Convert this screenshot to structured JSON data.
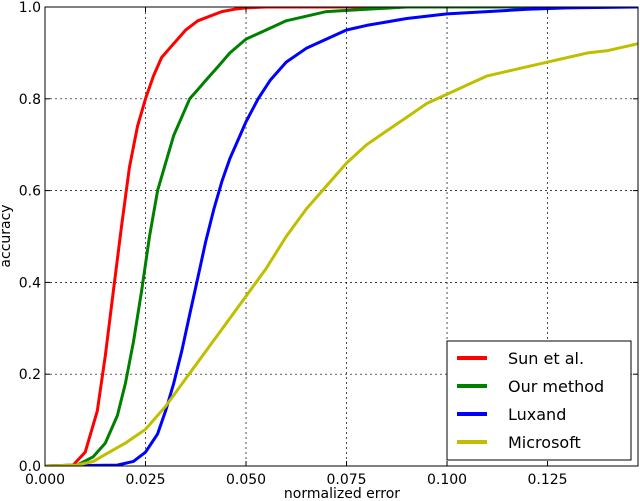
{
  "chart_data": {
    "type": "line",
    "title": "",
    "xlabel": "normalized error",
    "ylabel": "accuracy",
    "xlim": [
      0.0,
      0.1475
    ],
    "ylim": [
      0.0,
      1.0
    ],
    "x_ticks": [
      0.0,
      0.025,
      0.05,
      0.075,
      0.1,
      0.125
    ],
    "x_tick_labels": [
      "0.000",
      "0.025",
      "0.050",
      "0.075",
      "0.100",
      "0.125"
    ],
    "y_ticks": [
      0.0,
      0.2,
      0.4,
      0.6,
      0.8,
      1.0
    ],
    "y_tick_labels": [
      "0.0",
      "0.2",
      "0.4",
      "0.6",
      "0.8",
      "1.0"
    ],
    "grid": true,
    "legend_position": "bottom-right",
    "series": [
      {
        "name": "Sun et al.",
        "color": "#ff0000",
        "x": [
          0.0,
          0.007,
          0.01,
          0.013,
          0.015,
          0.017,
          0.019,
          0.021,
          0.023,
          0.025,
          0.027,
          0.029,
          0.031,
          0.033,
          0.035,
          0.038,
          0.041,
          0.044,
          0.047,
          0.05,
          0.055,
          0.06,
          0.07,
          0.08,
          0.1,
          0.1475
        ],
        "y": [
          0.0,
          0.002,
          0.03,
          0.12,
          0.24,
          0.38,
          0.52,
          0.65,
          0.74,
          0.8,
          0.85,
          0.89,
          0.91,
          0.93,
          0.95,
          0.97,
          0.98,
          0.99,
          0.995,
          0.998,
          1.0,
          1.0,
          1.0,
          1.0,
          1.0,
          1.0
        ]
      },
      {
        "name": "Our method",
        "color": "#008000",
        "x": [
          0.0,
          0.008,
          0.012,
          0.015,
          0.018,
          0.02,
          0.022,
          0.024,
          0.026,
          0.028,
          0.03,
          0.032,
          0.034,
          0.036,
          0.038,
          0.04,
          0.043,
          0.046,
          0.05,
          0.055,
          0.06,
          0.065,
          0.07,
          0.08,
          0.09,
          0.1,
          0.1475
        ],
        "y": [
          0.0,
          0.002,
          0.02,
          0.05,
          0.11,
          0.18,
          0.27,
          0.38,
          0.5,
          0.6,
          0.66,
          0.72,
          0.76,
          0.8,
          0.82,
          0.84,
          0.87,
          0.9,
          0.93,
          0.95,
          0.97,
          0.98,
          0.99,
          0.995,
          1.0,
          1.0,
          1.0
        ]
      },
      {
        "name": "Luxand",
        "color": "#0000ff",
        "x": [
          0.0,
          0.018,
          0.022,
          0.025,
          0.028,
          0.03,
          0.032,
          0.034,
          0.036,
          0.038,
          0.04,
          0.042,
          0.044,
          0.046,
          0.048,
          0.05,
          0.053,
          0.056,
          0.06,
          0.065,
          0.07,
          0.075,
          0.08,
          0.09,
          0.1,
          0.11,
          0.12,
          0.13,
          0.1475
        ],
        "y": [
          0.0,
          0.002,
          0.01,
          0.03,
          0.07,
          0.12,
          0.18,
          0.25,
          0.33,
          0.41,
          0.49,
          0.56,
          0.62,
          0.67,
          0.71,
          0.75,
          0.8,
          0.84,
          0.88,
          0.91,
          0.93,
          0.95,
          0.96,
          0.975,
          0.985,
          0.99,
          0.995,
          0.998,
          1.0
        ]
      },
      {
        "name": "Microsoft",
        "color": "#bfbf00",
        "x": [
          0.0,
          0.008,
          0.012,
          0.016,
          0.02,
          0.025,
          0.03,
          0.035,
          0.04,
          0.045,
          0.05,
          0.055,
          0.06,
          0.065,
          0.07,
          0.075,
          0.08,
          0.085,
          0.09,
          0.095,
          0.1,
          0.105,
          0.11,
          0.115,
          0.12,
          0.125,
          0.13,
          0.135,
          0.14,
          0.1475
        ],
        "y": [
          0.0,
          0.002,
          0.01,
          0.03,
          0.05,
          0.08,
          0.13,
          0.19,
          0.25,
          0.31,
          0.37,
          0.43,
          0.5,
          0.56,
          0.61,
          0.66,
          0.7,
          0.73,
          0.76,
          0.79,
          0.81,
          0.83,
          0.85,
          0.86,
          0.87,
          0.88,
          0.89,
          0.9,
          0.905,
          0.92
        ]
      }
    ]
  }
}
